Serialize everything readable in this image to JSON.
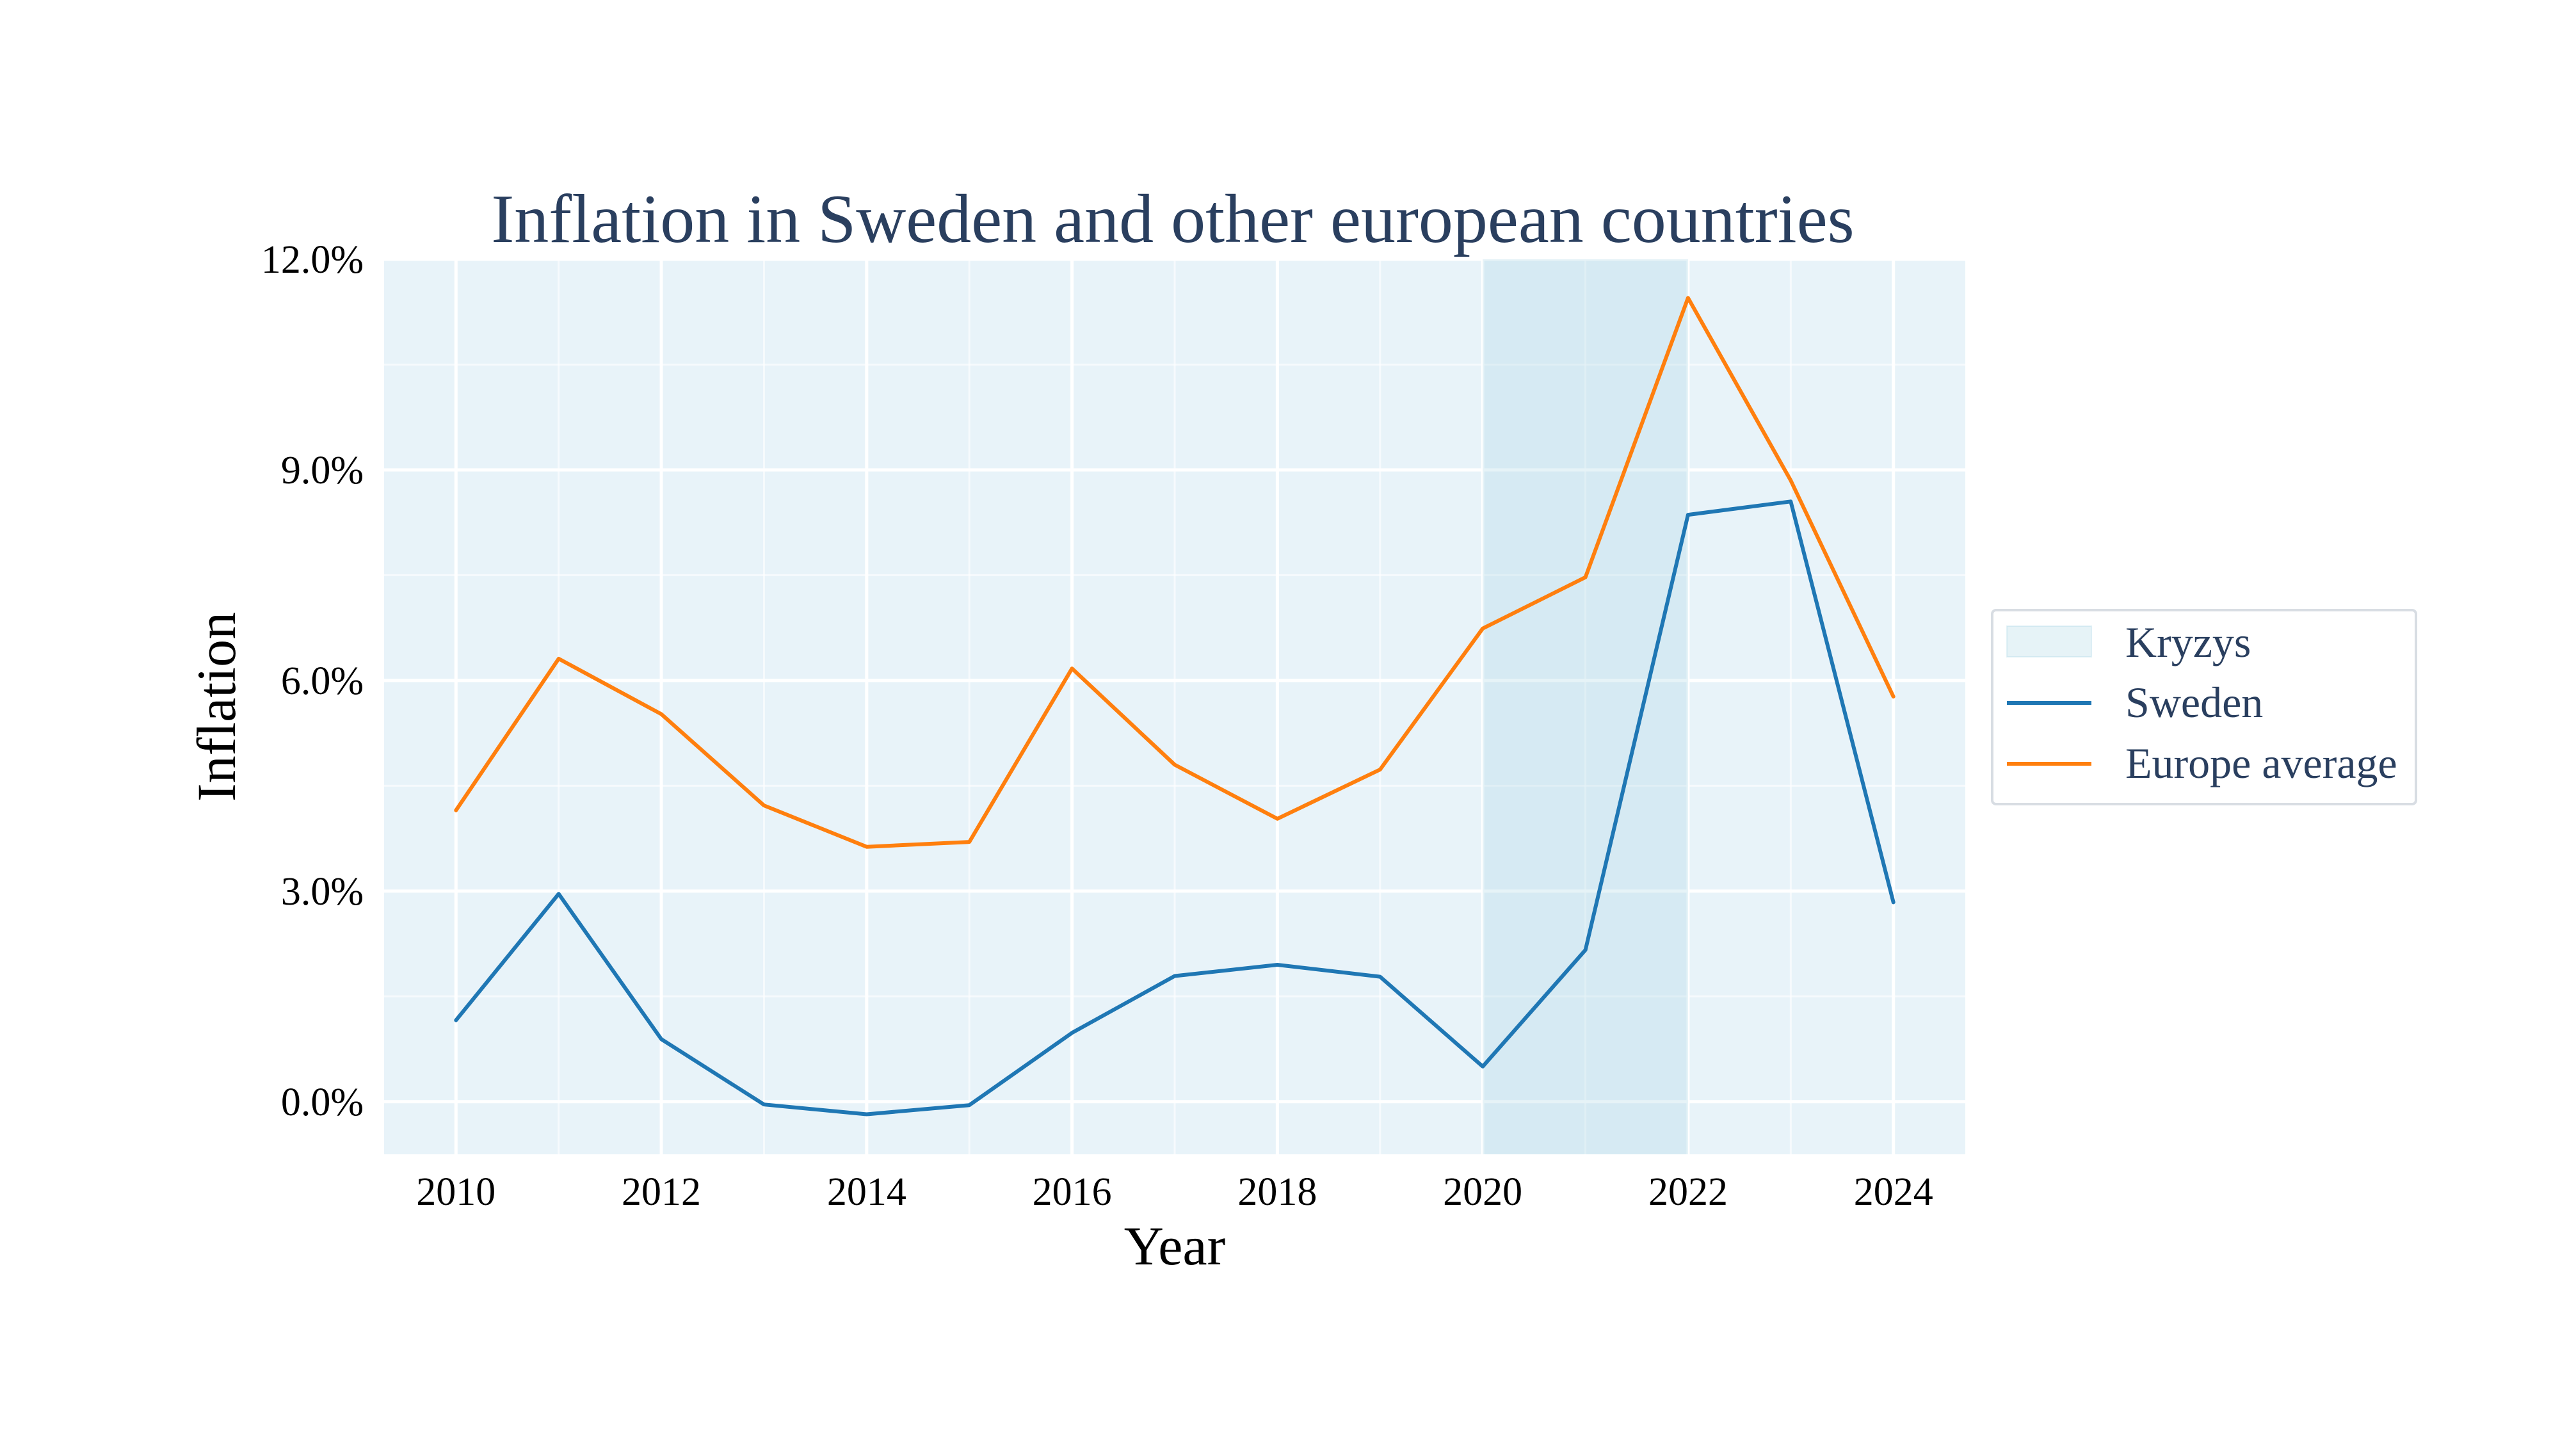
{
  "chart_data": {
    "type": "line",
    "title": "Inflation in Sweden and other european countries",
    "xlabel": "Year",
    "ylabel": "Inflation",
    "x": [
      2010,
      2011,
      2012,
      2013,
      2014,
      2015,
      2016,
      2017,
      2018,
      2019,
      2020,
      2021,
      2022,
      2023,
      2024
    ],
    "xlim": [
      2009.3,
      2024.7
    ],
    "ylim": [
      -0.75,
      12.0
    ],
    "x_ticks": [
      2010,
      2012,
      2014,
      2016,
      2018,
      2020,
      2022,
      2024
    ],
    "x_tick_labels": [
      "2010",
      "2012",
      "2014",
      "2016",
      "2018",
      "2020",
      "2022",
      "2024"
    ],
    "y_ticks": [
      0,
      3,
      6,
      9,
      12
    ],
    "y_tick_labels": [
      "0.0%",
      "3.0%",
      "6.0%",
      "9.0%",
      "12.0%"
    ],
    "grid": true,
    "legend_position": "right",
    "background_color": "#e8f3f9",
    "series": [
      {
        "name": "Sweden",
        "color": "#1f77b4",
        "values": [
          1.16,
          2.96,
          0.89,
          -0.04,
          -0.18,
          -0.05,
          0.98,
          1.79,
          1.95,
          1.78,
          0.5,
          2.16,
          8.36,
          8.55,
          2.84
        ]
      },
      {
        "name": "Europe average",
        "color": "#ff7f0e",
        "values": [
          4.15,
          6.31,
          5.52,
          4.22,
          3.63,
          3.7,
          6.17,
          4.8,
          4.03,
          4.73,
          6.74,
          7.47,
          11.45,
          8.85,
          5.77
        ]
      }
    ],
    "shaded_region": {
      "name": "Kryzys",
      "x_start": 2020,
      "x_end": 2022,
      "color": "#add8e6",
      "opacity": 0.3
    }
  }
}
